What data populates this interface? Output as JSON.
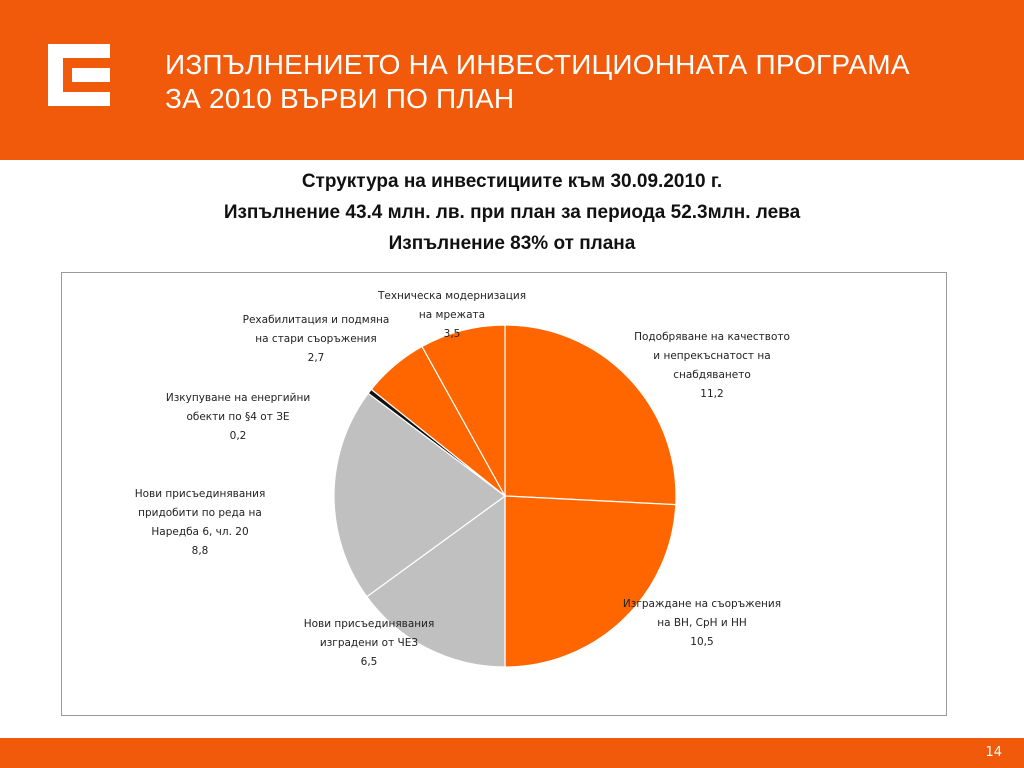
{
  "header": {
    "title_line1": "ИЗПЪЛНЕНИЕТО НА ИНВЕСТИЦИОННАТА ПРОГРАМА",
    "title_line2": "ЗА 2010 ВЪРВИ ПО ПЛАН",
    "logo_icon": "cez-logo-icon"
  },
  "subtitle": {
    "line1": "Структура на инвестициите към 30.09.2010 г.",
    "line2": "Изпълнение 43.4 млн. лв. при план за периода 52.3млн. лева",
    "line3": "Изпълнение 83% от плана"
  },
  "footer": {
    "page_number": "14"
  },
  "colors": {
    "brand": "#f05a0a",
    "orange_slice": "#ff6600",
    "grey_slice": "#c0c0c0",
    "black_slice": "#111111"
  },
  "chart_data": {
    "type": "pie",
    "start_angle_deg": 0,
    "direction": "clockwise",
    "legend": "none",
    "slices": [
      {
        "label": [
          "Подобряване на качеството",
          "и непрекъснатост на",
          "снабдяването"
        ],
        "value": 11.2,
        "value_text": "11,2",
        "color": "#ff6600"
      },
      {
        "label": [
          "Изграждане на съоръжения",
          "на ВН, СрН и НН"
        ],
        "value": 10.5,
        "value_text": "10,5",
        "color": "#ff6600"
      },
      {
        "label": [
          "Нови присъединявания",
          "изградени от ЧЕЗ"
        ],
        "value": 6.5,
        "value_text": "6,5",
        "color": "#c0c0c0"
      },
      {
        "label": [
          "Нови присъединявания",
          "придобити по реда на",
          "Наредба 6, чл. 20"
        ],
        "value": 8.8,
        "value_text": "8,8",
        "color": "#c0c0c0"
      },
      {
        "label": [
          "Изкупуване на енергийни",
          "обекти по §4 от ЗЕ"
        ],
        "value": 0.2,
        "value_text": "0,2",
        "color": "#111111"
      },
      {
        "label": [
          "Рехабилитация и подмяна",
          "на стари съоръжения"
        ],
        "value": 2.7,
        "value_text": "2,7",
        "color": "#ff6600"
      },
      {
        "label": [
          "Техническа модернизация",
          "на мрежата"
        ],
        "value": 3.5,
        "value_text": "3,5",
        "color": "#ff6600"
      }
    ]
  }
}
